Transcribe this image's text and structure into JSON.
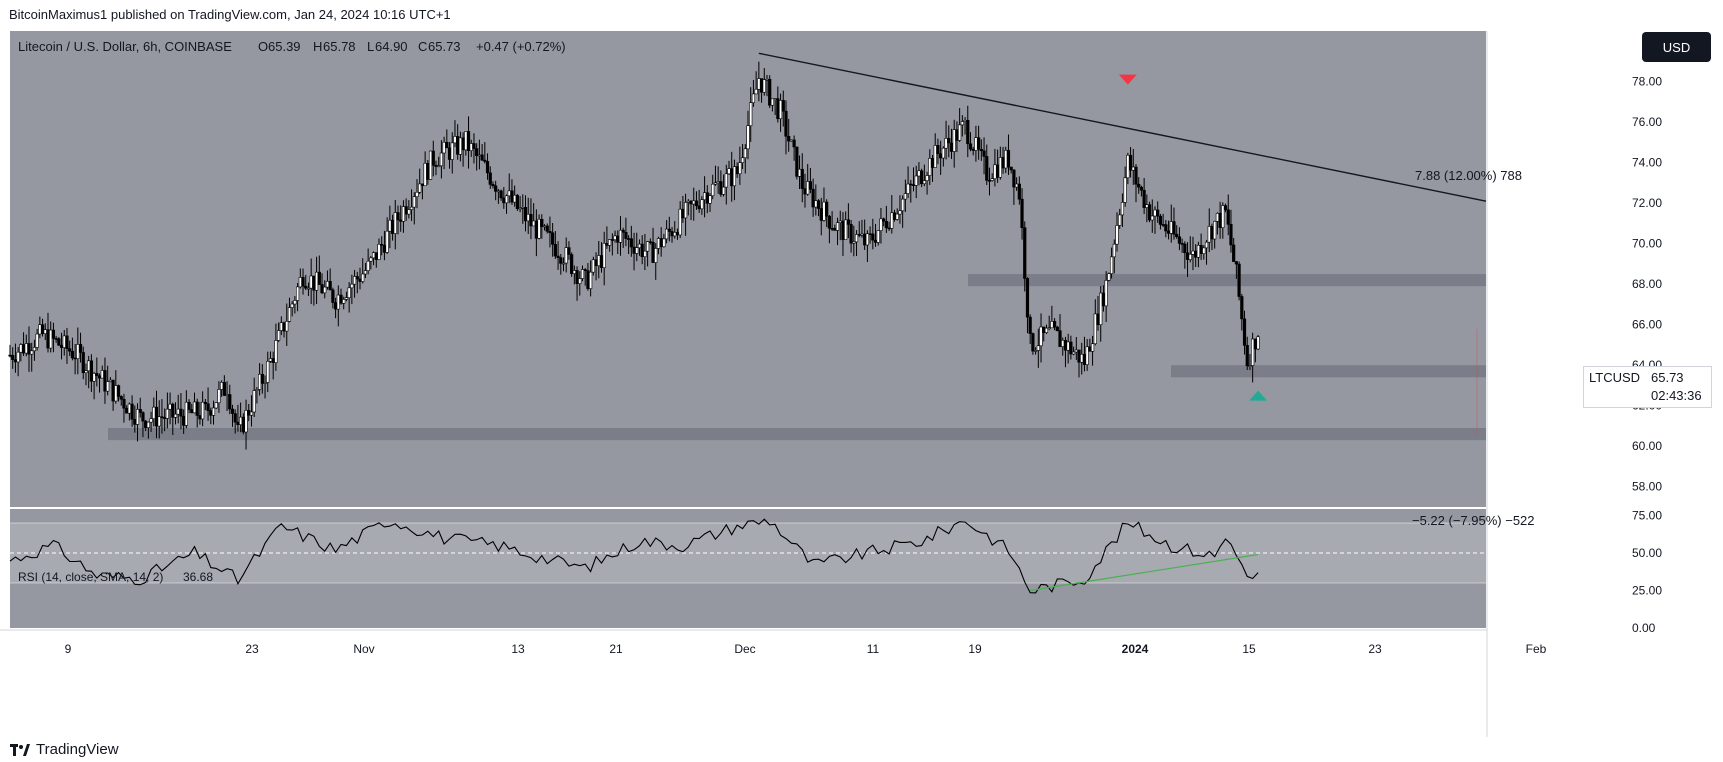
{
  "publisher": "BitcoinMaximus1 published on TradingView.com, Jan 24, 2024 10:16 UTC+1",
  "currency_button": "USD",
  "symbol_tag": {
    "name": "LTCUSD",
    "price": "65.73",
    "countdown": "02:43:36"
  },
  "legend": {
    "title": "Litecoin / U.S. Dollar, 6h, COINBASE",
    "o_label": "O",
    "o": "65.39",
    "h_label": "H",
    "h": "65.78",
    "l_label": "L",
    "l": "64.90",
    "c_label": "C",
    "c": "65.73",
    "change": "+0.47 (+0.72%)"
  },
  "rsi_legend": {
    "label": "RSI (14, close, SMA, 14, 2)",
    "value": "36.68"
  },
  "annotations": {
    "upper_measure": "7.88 (12.00%) 788",
    "lower_measure": "−5.22 (−7.95%) −522"
  },
  "footer_brand": "TradingView",
  "colors": {
    "bg": "#9598a1",
    "candle": "#000000",
    "trendline": "#131722",
    "zone": "#787b86",
    "down_marker": "#f23645",
    "up_marker": "#22ab94",
    "rsi_trend": "#4caf50"
  },
  "chart_data": [
    {
      "type": "candlestick",
      "title": "Litecoin / U.S. Dollar, 6h, COINBASE",
      "ylim": [
        57,
        80.5
      ],
      "y_ticks": [
        "58.00",
        "60.00",
        "62.00",
        "64.00",
        "66.00",
        "68.00",
        "70.00",
        "72.00",
        "74.00",
        "76.00",
        "78.00"
      ],
      "x_tick_labels": [
        "9",
        "23",
        "Nov",
        "13",
        "21",
        "Dec",
        "11",
        "19",
        "2024",
        "15",
        "23",
        "Feb"
      ],
      "date_range": [
        "2023-10-01",
        "2024-02-14"
      ],
      "price_path": [
        [
          "2023-10-01",
          64.5
        ],
        [
          "2023-10-04",
          65.5
        ],
        [
          "2023-10-07",
          64.6
        ],
        [
          "2023-10-10",
          63.0
        ],
        [
          "2023-10-13",
          61.4
        ],
        [
          "2023-10-16",
          61.5
        ],
        [
          "2023-10-19",
          61.7
        ],
        [
          "2023-10-21",
          63.0
        ],
        [
          "2023-10-22",
          60.6
        ],
        [
          "2023-10-25",
          64.2
        ],
        [
          "2023-10-28",
          68.5
        ],
        [
          "2023-10-31",
          67.3
        ],
        [
          "2023-11-03",
          68.8
        ],
        [
          "2023-11-06",
          71.5
        ],
        [
          "2023-11-09",
          74.2
        ],
        [
          "2023-11-12",
          75.0
        ],
        [
          "2023-11-15",
          72.8
        ],
        [
          "2023-11-18",
          71.0
        ],
        [
          "2023-11-21",
          69.5
        ],
        [
          "2023-11-23",
          68.1
        ],
        [
          "2023-11-26",
          70.5
        ],
        [
          "2023-11-29",
          69.5
        ],
        [
          "2023-12-01",
          70.7
        ],
        [
          "2023-12-04",
          72.5
        ],
        [
          "2023-12-07",
          73.5
        ],
        [
          "2023-12-09",
          78.2
        ],
        [
          "2023-12-11",
          76.5
        ],
        [
          "2023-12-13",
          72.9
        ],
        [
          "2023-12-16",
          70.9
        ],
        [
          "2023-12-19",
          70.0
        ],
        [
          "2023-12-22",
          72.0
        ],
        [
          "2023-12-25",
          74.2
        ],
        [
          "2023-12-28",
          75.8
        ],
        [
          "2023-12-30",
          73.5
        ],
        [
          "2024-01-01",
          74.2
        ],
        [
          "2024-01-02",
          72.5
        ],
        [
          "2024-01-03",
          65.0
        ],
        [
          "2024-01-05",
          65.6
        ],
        [
          "2024-01-08",
          64.2
        ],
        [
          "2024-01-10",
          68.0
        ],
        [
          "2024-01-12",
          74.0
        ],
        [
          "2024-01-14",
          71.6
        ],
        [
          "2024-01-16",
          70.5
        ],
        [
          "2024-01-18",
          69.4
        ],
        [
          "2024-01-20",
          71.0
        ],
        [
          "2024-01-21",
          71.5
        ],
        [
          "2024-01-22",
          68.4
        ],
        [
          "2024-01-23",
          64.2
        ],
        [
          "2024-01-24",
          65.7
        ]
      ],
      "trendline": [
        [
          "2023-12-09",
          79.4
        ],
        [
          "2024-02-14",
          72.1
        ]
      ],
      "support_zones": [
        [
          60.3,
          60.9
        ],
        [
          63.4,
          64.0
        ],
        [
          67.9,
          68.5
        ]
      ],
      "markers": [
        {
          "type": "down",
          "date": "2024-01-12",
          "price": 78.1
        },
        {
          "type": "up",
          "date": "2024-01-24",
          "price": 62.5
        }
      ]
    },
    {
      "type": "line",
      "title": "RSI (14, close, SMA, 14, 2)",
      "ylim": [
        0,
        80
      ],
      "y_ticks": [
        "0.00",
        "25.00",
        "50.00",
        "75.00"
      ],
      "band": [
        30,
        70
      ],
      "rsi_path": [
        [
          "2023-10-01",
          45
        ],
        [
          "2023-10-05",
          55
        ],
        [
          "2023-10-09",
          35
        ],
        [
          "2023-10-13",
          33
        ],
        [
          "2023-10-18",
          50
        ],
        [
          "2023-10-22",
          32
        ],
        [
          "2023-10-26",
          68
        ],
        [
          "2023-10-31",
          52
        ],
        [
          "2023-11-05",
          72
        ],
        [
          "2023-11-10",
          60
        ],
        [
          "2023-11-15",
          55
        ],
        [
          "2023-11-20",
          45
        ],
        [
          "2023-11-23",
          40
        ],
        [
          "2023-11-28",
          58
        ],
        [
          "2023-12-02",
          55
        ],
        [
          "2023-12-07",
          68
        ],
        [
          "2023-12-10",
          72
        ],
        [
          "2023-12-14",
          42
        ],
        [
          "2023-12-19",
          50
        ],
        [
          "2023-12-24",
          58
        ],
        [
          "2023-12-28",
          72
        ],
        [
          "2024-01-01",
          52
        ],
        [
          "2024-01-03",
          25
        ],
        [
          "2024-01-08",
          33
        ],
        [
          "2024-01-12",
          70
        ],
        [
          "2024-01-16",
          55
        ],
        [
          "2024-01-20",
          48
        ],
        [
          "2024-01-21",
          60
        ],
        [
          "2024-01-22",
          52
        ],
        [
          "2024-01-23",
          32
        ],
        [
          "2024-01-24",
          36.7
        ]
      ],
      "trendline": [
        [
          "2024-01-03",
          25
        ],
        [
          "2024-01-24",
          49
        ]
      ]
    }
  ]
}
